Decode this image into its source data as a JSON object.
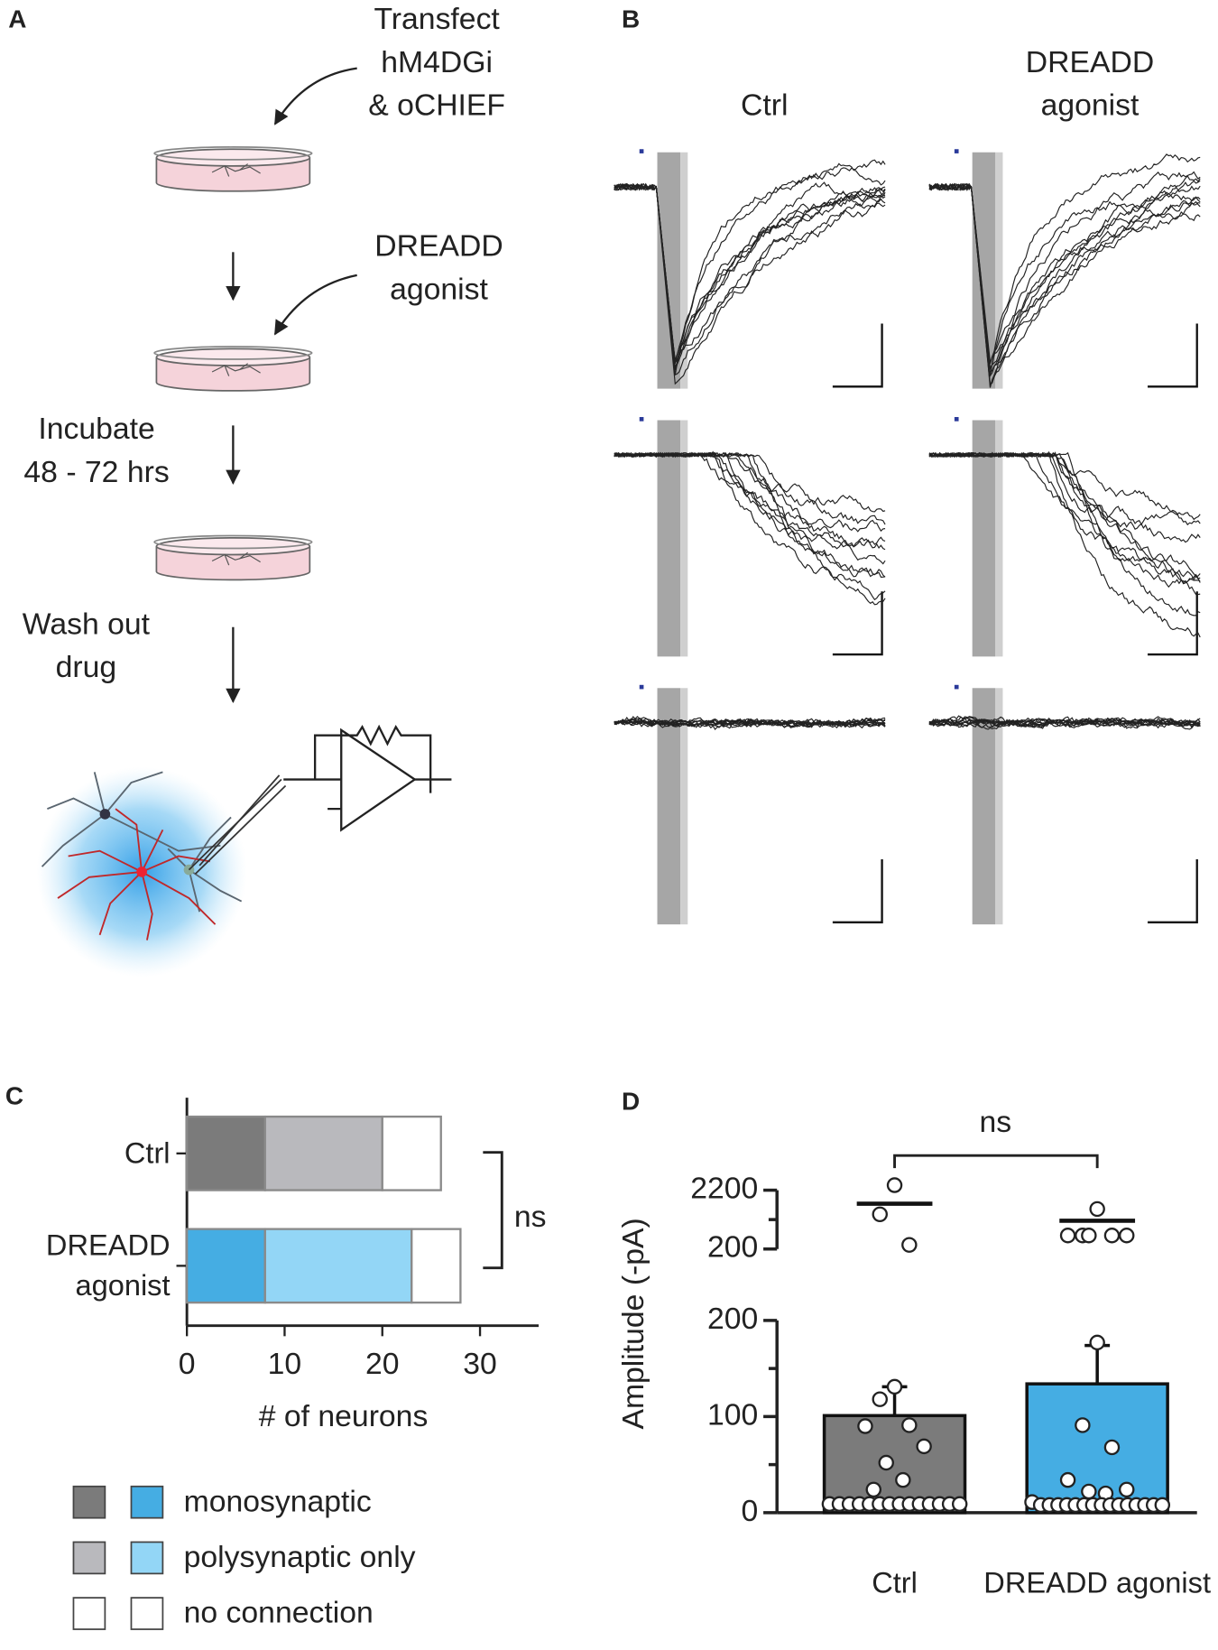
{
  "panels": {
    "A": {
      "label": "A",
      "steps": [
        [
          "Transfect",
          "hM4DGi",
          "& oCHIEF"
        ],
        [
          "DREADD",
          "agonist"
        ],
        [
          "Incubate",
          "48 - 72 hrs"
        ],
        [
          "Wash out",
          "drug"
        ]
      ]
    },
    "B": {
      "label": "B",
      "columns": [
        [
          "Ctrl"
        ],
        [
          "DREADD",
          "agonist"
        ]
      ]
    },
    "C": {
      "label": "C"
    },
    "D": {
      "label": "D"
    }
  },
  "chart_data": [
    {
      "type": "bar",
      "orientation": "horizontal",
      "stacked": true,
      "categories": [
        "Ctrl",
        "DREADD agonist"
      ],
      "series": [
        {
          "name": "monosynaptic",
          "colors": [
            "#7b7b7b",
            "#45ade3"
          ],
          "values": [
            8,
            8
          ]
        },
        {
          "name": "polysynaptic only",
          "colors": [
            "#b9b9bd",
            "#93d6f6"
          ],
          "values": [
            12,
            15
          ]
        },
        {
          "name": "no connection",
          "colors": [
            "#ffffff",
            "#ffffff"
          ],
          "values": [
            6,
            5
          ]
        }
      ],
      "xlim": [
        0,
        36
      ],
      "xticks": [
        0,
        10,
        20,
        30
      ],
      "xlabel": "# of neurons",
      "annotation": "ns"
    },
    {
      "type": "bar",
      "categories": [
        "Ctrl",
        "DREADD agonist"
      ],
      "values": [
        101,
        134
      ],
      "errors": [
        30,
        40
      ],
      "colors": [
        "#7b7b7b",
        "#45ade3"
      ],
      "points": [
        [
          131,
          118,
          91,
          90,
          69,
          52,
          34,
          24,
          9,
          9,
          9,
          9,
          9,
          9,
          9,
          9,
          9,
          9,
          9,
          9,
          9,
          9
        ],
        [
          177,
          91,
          68,
          34,
          24,
          22,
          20,
          11,
          8,
          8,
          8,
          8,
          8,
          8,
          8,
          8,
          8,
          8,
          8,
          8,
          8,
          8,
          8
        ]
      ],
      "ylim": [
        0,
        200
      ],
      "yticks": [
        0,
        100,
        200
      ],
      "yticks_minor": [
        50,
        150
      ],
      "ylim_top": [
        200,
        2200
      ],
      "yticks_top": [
        200,
        2200
      ],
      "yticks_top_minor": [
        1200
      ],
      "points_top": [
        [
          2370,
          1380,
          340
        ],
        [
          1560,
          660,
          660,
          660,
          660,
          660
        ]
      ],
      "means_top": [
        1740,
        1160
      ],
      "ylabel": "Amplitude (-pA)",
      "annotation": "ns"
    }
  ]
}
